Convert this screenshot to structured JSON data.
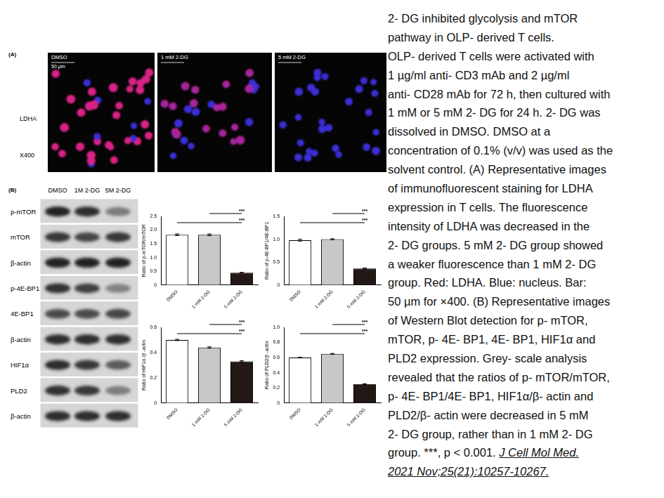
{
  "panel_a": {
    "label": "(A)",
    "columns": [
      "DMSO",
      "1 mM 2-DG",
      "5 mM 2-DG"
    ],
    "scale_bar": "50 μm",
    "row_label": "LDHA",
    "magnification": "X400"
  },
  "panel_b": {
    "label": "(B)",
    "lanes": [
      "DMSO",
      "1M 2-DG",
      "5M 2-DG"
    ],
    "rows": [
      "p-mTOR",
      "mTOR",
      "β-actin",
      "p-4E-BP1",
      "4E-BP1",
      "β-actin",
      "HIF1α",
      "PLD2",
      "β-actin"
    ]
  },
  "chart_data": [
    {
      "type": "bar",
      "y_label": "Ratio of p-mTOR/mTOR",
      "categories": [
        "DMSO",
        "1 mM 2-DG",
        "5 mM 2-DG"
      ],
      "values": [
        1.83,
        1.83,
        0.45
      ],
      "errors": [
        0.03,
        0.03,
        0.01
      ],
      "colors": [
        "#ffffff",
        "#c8c8c8",
        "#231815"
      ],
      "ylim": [
        0,
        2.5
      ],
      "yticks": [
        0,
        0.5,
        {
          "value": 1,
          "label": "1.0"
        },
        1.5,
        {
          "value": 2,
          "label": "2.0"
        },
        2.5
      ],
      "grid": false,
      "annotations": [
        {
          "from": "1 mM 2-DG",
          "to": "5 mM 2-DG",
          "text": "***"
        },
        {
          "from": "DMSO",
          "to": "5 mM 2-DG",
          "text": "***"
        }
      ]
    },
    {
      "type": "bar",
      "y_label": "Ratio of p-4E-BP1/4E-BP1",
      "categories": [
        "DMSO",
        "1 mM 2-DG",
        "5 mM 2-DG"
      ],
      "values": [
        0.98,
        1.0,
        0.36
      ],
      "errors": [
        0.02,
        0.01,
        0.01
      ],
      "colors": [
        "#ffffff",
        "#c8c8c8",
        "#231815"
      ],
      "ylim": [
        0,
        1.5
      ],
      "yticks": [
        0,
        0.5,
        {
          "value": 1,
          "label": "1.0"
        },
        1.5
      ],
      "grid": false,
      "annotations": [
        {
          "from": "1 mM 2-DG",
          "to": "5 mM 2-DG",
          "text": "***"
        },
        {
          "from": "DMSO",
          "to": "5 mM 2-DG",
          "text": "***"
        }
      ]
    },
    {
      "type": "bar",
      "y_label": "Ratio of HIF1α /β -actin",
      "categories": [
        "DMSO",
        "1 mM 2-DG",
        "5 mM 2-DG"
      ],
      "values": [
        0.5,
        0.44,
        0.33
      ],
      "errors": [
        0.005,
        0.005,
        0.005
      ],
      "colors": [
        "#ffffff",
        "#c8c8c8",
        "#231815"
      ],
      "ylim": [
        0,
        0.6
      ],
      "yticks": [
        0,
        0.2,
        0.4,
        0.6
      ],
      "grid": false,
      "annotations": [
        {
          "from": "1 mM 2-DG",
          "to": "5 mM 2-DG",
          "text": "***"
        },
        {
          "from": "DMSO",
          "to": "5 mM 2-DG",
          "text": "***"
        }
      ]
    },
    {
      "type": "bar",
      "y_label": "Ratio of PLD2/β -actin",
      "categories": [
        "DMSO",
        "1 mM 2-DG",
        "5 mM 2-DG"
      ],
      "values": [
        0.6,
        0.65,
        0.25
      ],
      "errors": [
        0.005,
        0.005,
        0.005
      ],
      "colors": [
        "#ffffff",
        "#c8c8c8",
        "#231815"
      ],
      "ylim": [
        0,
        1
      ],
      "yticks": [
        0,
        0.2,
        0.4,
        0.6,
        0.8,
        {
          "value": 1,
          "label": "1.0"
        }
      ],
      "grid": false,
      "annotations": [
        {
          "from": "1 mM 2-DG",
          "to": "5 mM 2-DG",
          "text": "***"
        },
        {
          "from": "DMSO",
          "to": "5 mM 2-DG",
          "text": "***"
        }
      ]
    }
  ],
  "caption": {
    "lines": [
      "2- DG inhibited glycolysis and mTOR",
      "pathway in OLP- derived T cells.",
      "OLP- derived T cells were activated with",
      "1 µg/ml anti- CD3 mAb and 2 µg/ml",
      "anti- CD28 mAb for 72 h, then cultured with",
      "1 mM or 5 mM 2- DG for 24 h. 2- DG was",
      "dissolved in DMSO. DMSO at a",
      "concentration of 0.1% (v/v) was used as the",
      "solvent control. (A) Representative images",
      "of immunofluorescent staining for LDHA",
      "expression in T cells. The fluorescence",
      "intensity of LDHA was decreased in the",
      "2- DG groups. 5 mM 2- DG group showed",
      "a weaker fluorescence than 1 mM 2- DG",
      "group. Red: LDHA. Blue: nucleus. Bar:",
      "50 µm for ×400. (B) Representative images",
      "of Western Blot detection for p- mTOR,",
      "mTOR, p- 4E- BP1, 4E- BP1, HIF1α and",
      "PLD2 expression. Grey- scale analysis",
      "revealed that the ratios of p- mTOR/mTOR,",
      "p- 4E- BP1/4E- BP1, HIF1α/β- actin and",
      "PLD2/β- actin were decreased in 5 mM",
      "2- DG group, rather than in 1 mM 2- DG",
      "group. ***, p < 0.001."
    ],
    "citation": [
      "J Cell Mol Med.",
      "2021 Nov;25(21):10257-10267."
    ]
  }
}
